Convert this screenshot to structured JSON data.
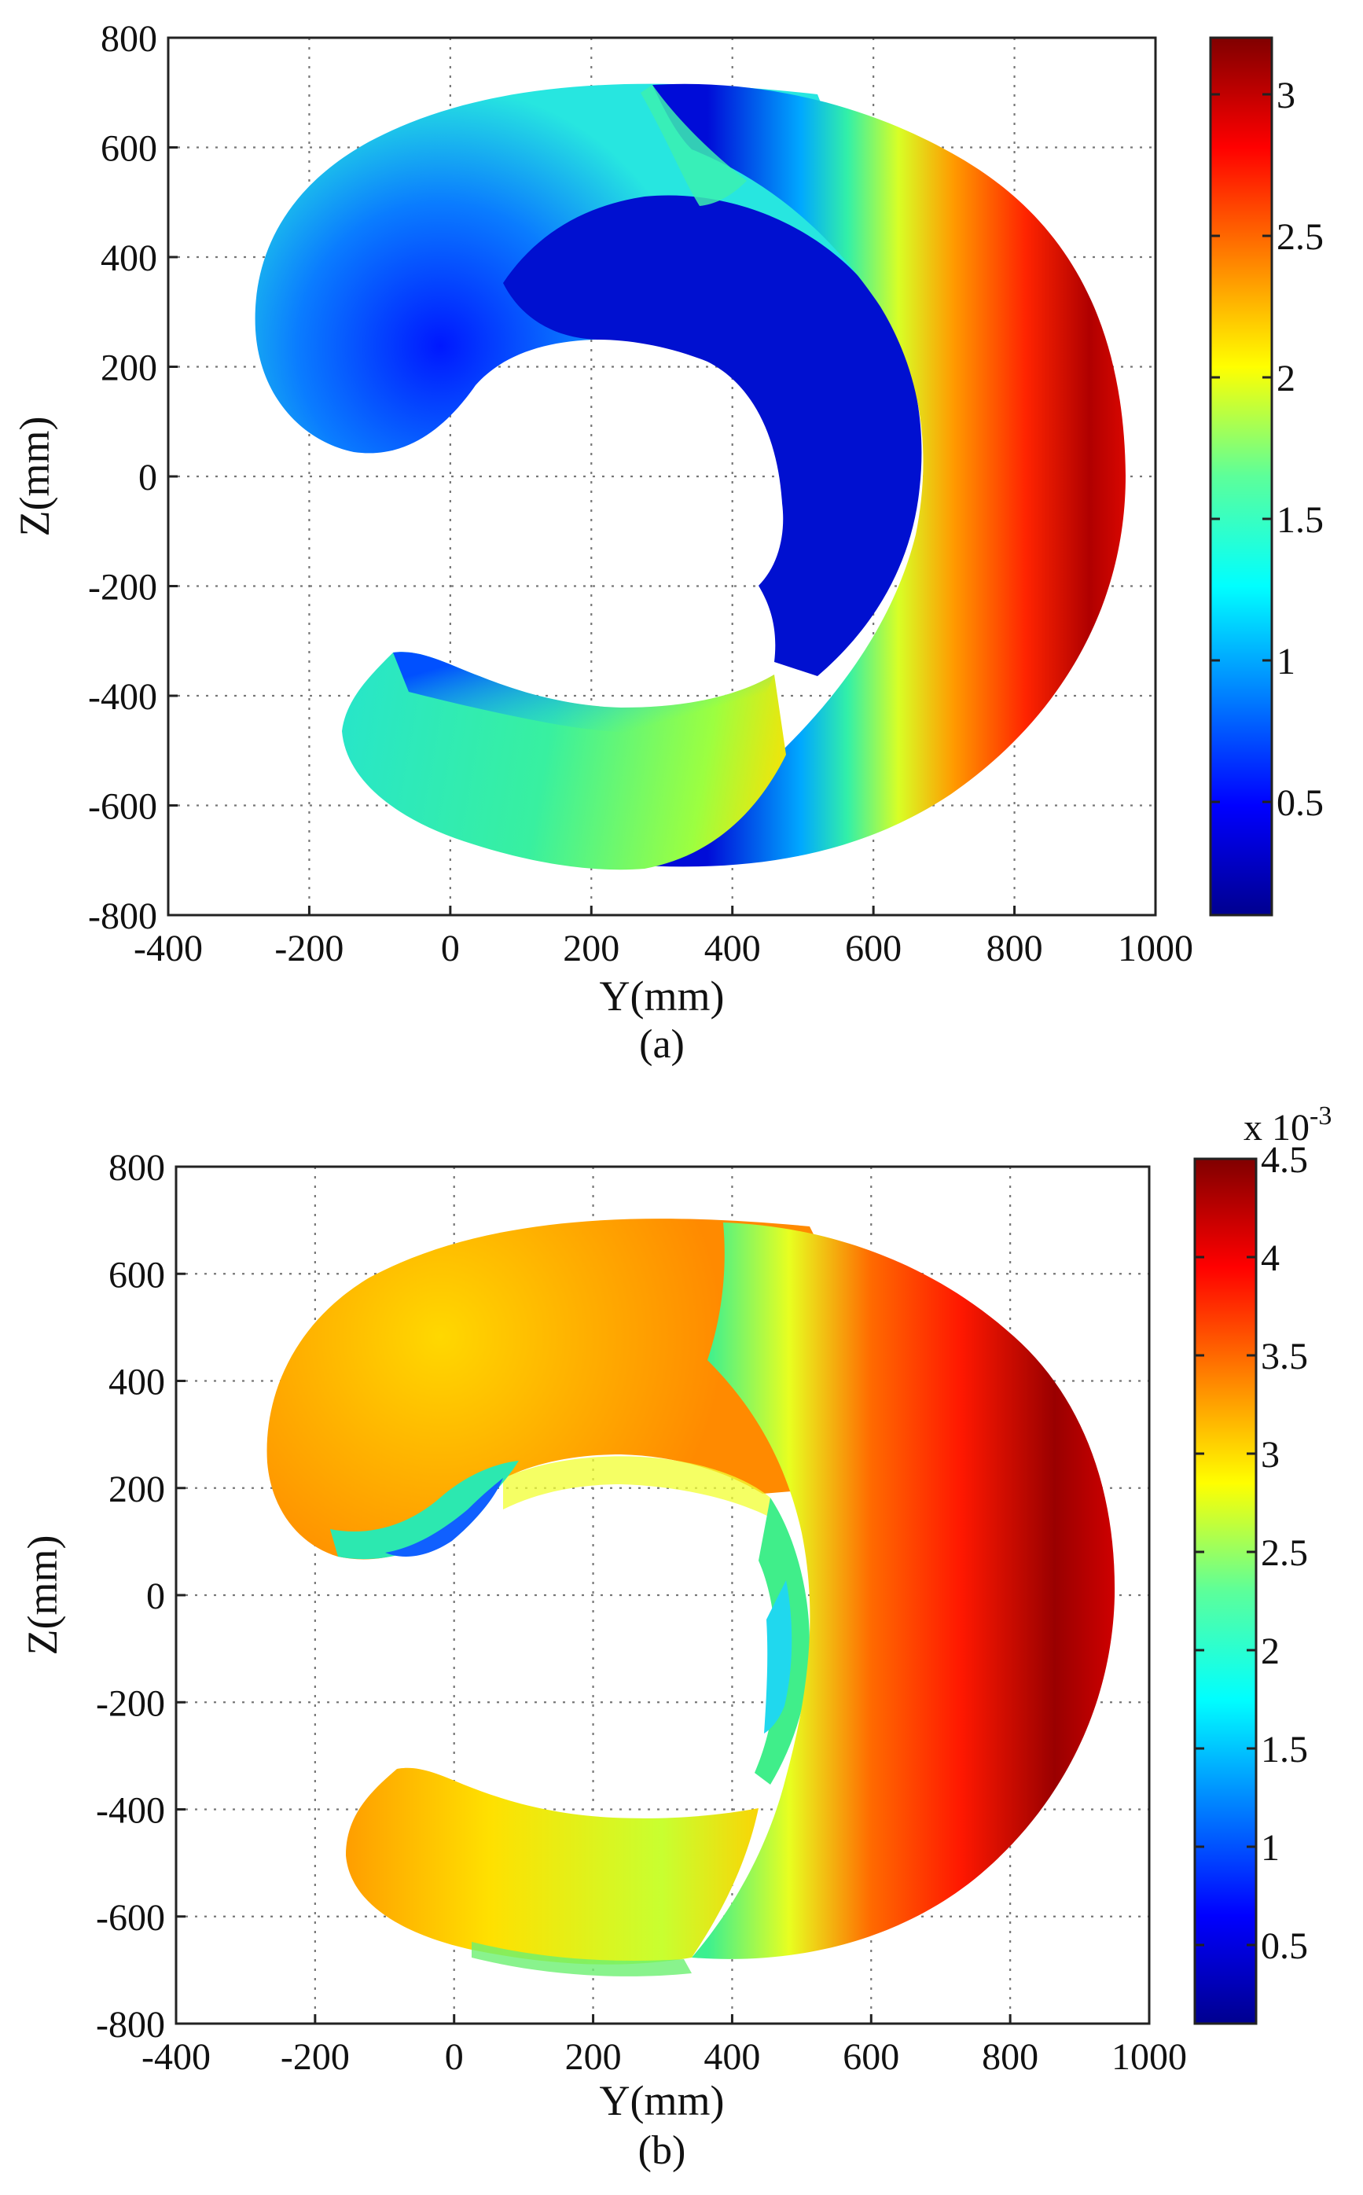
{
  "chart_data": [
    {
      "type": "heatmap",
      "panel_label": "(a)",
      "xlabel": "Y(mm)",
      "ylabel": "Z(mm)",
      "xlim": [
        -400,
        1000
      ],
      "ylim": [
        -800,
        800
      ],
      "x_ticks": [
        "-400",
        "-200",
        "0",
        "200",
        "400",
        "600",
        "800",
        "1000"
      ],
      "y_ticks": [
        "800",
        "600",
        "400",
        "200",
        "0",
        "-200",
        "-400",
        "-600",
        "-800"
      ],
      "grid": true,
      "colorbar": {
        "range": [
          0.1,
          3.2
        ],
        "ticks": [
          "0.5",
          "1",
          "1.5",
          "2",
          "2.5",
          "3"
        ],
        "exponent_label": "",
        "colormap": "jet"
      },
      "regions": {
        "upper_lobe_outer": 1.2,
        "upper_lobe_inner": 0.3,
        "inner_crescent": 0.15,
        "outer_rim": 3.0,
        "lower_lobe": 1.5
      }
    },
    {
      "type": "heatmap",
      "panel_label": "(b)",
      "xlabel": "Y(mm)",
      "ylabel": "Z(mm)",
      "xlim": [
        -400,
        1000
      ],
      "ylim": [
        -800,
        800
      ],
      "x_ticks": [
        "-400",
        "-200",
        "0",
        "200",
        "400",
        "600",
        "800",
        "1000"
      ],
      "y_ticks": [
        "800",
        "600",
        "400",
        "200",
        "0",
        "-200",
        "-400",
        "-600",
        "-800"
      ],
      "grid": true,
      "colorbar": {
        "range": [
          0.1,
          4.5
        ],
        "ticks": [
          "0.5",
          "1",
          "1.5",
          "2",
          "2.5",
          "3",
          "3.5",
          "4",
          "4.5"
        ],
        "exponent_label": "x 10",
        "exponent": "-3",
        "colormap": "jet"
      },
      "regions": {
        "upper_lobe_outer": 3.5,
        "upper_lobe_inner": 2.6,
        "inner_edge": 1.0,
        "outer_rim": 4.3,
        "lower_lobe": 2.8
      }
    }
  ]
}
